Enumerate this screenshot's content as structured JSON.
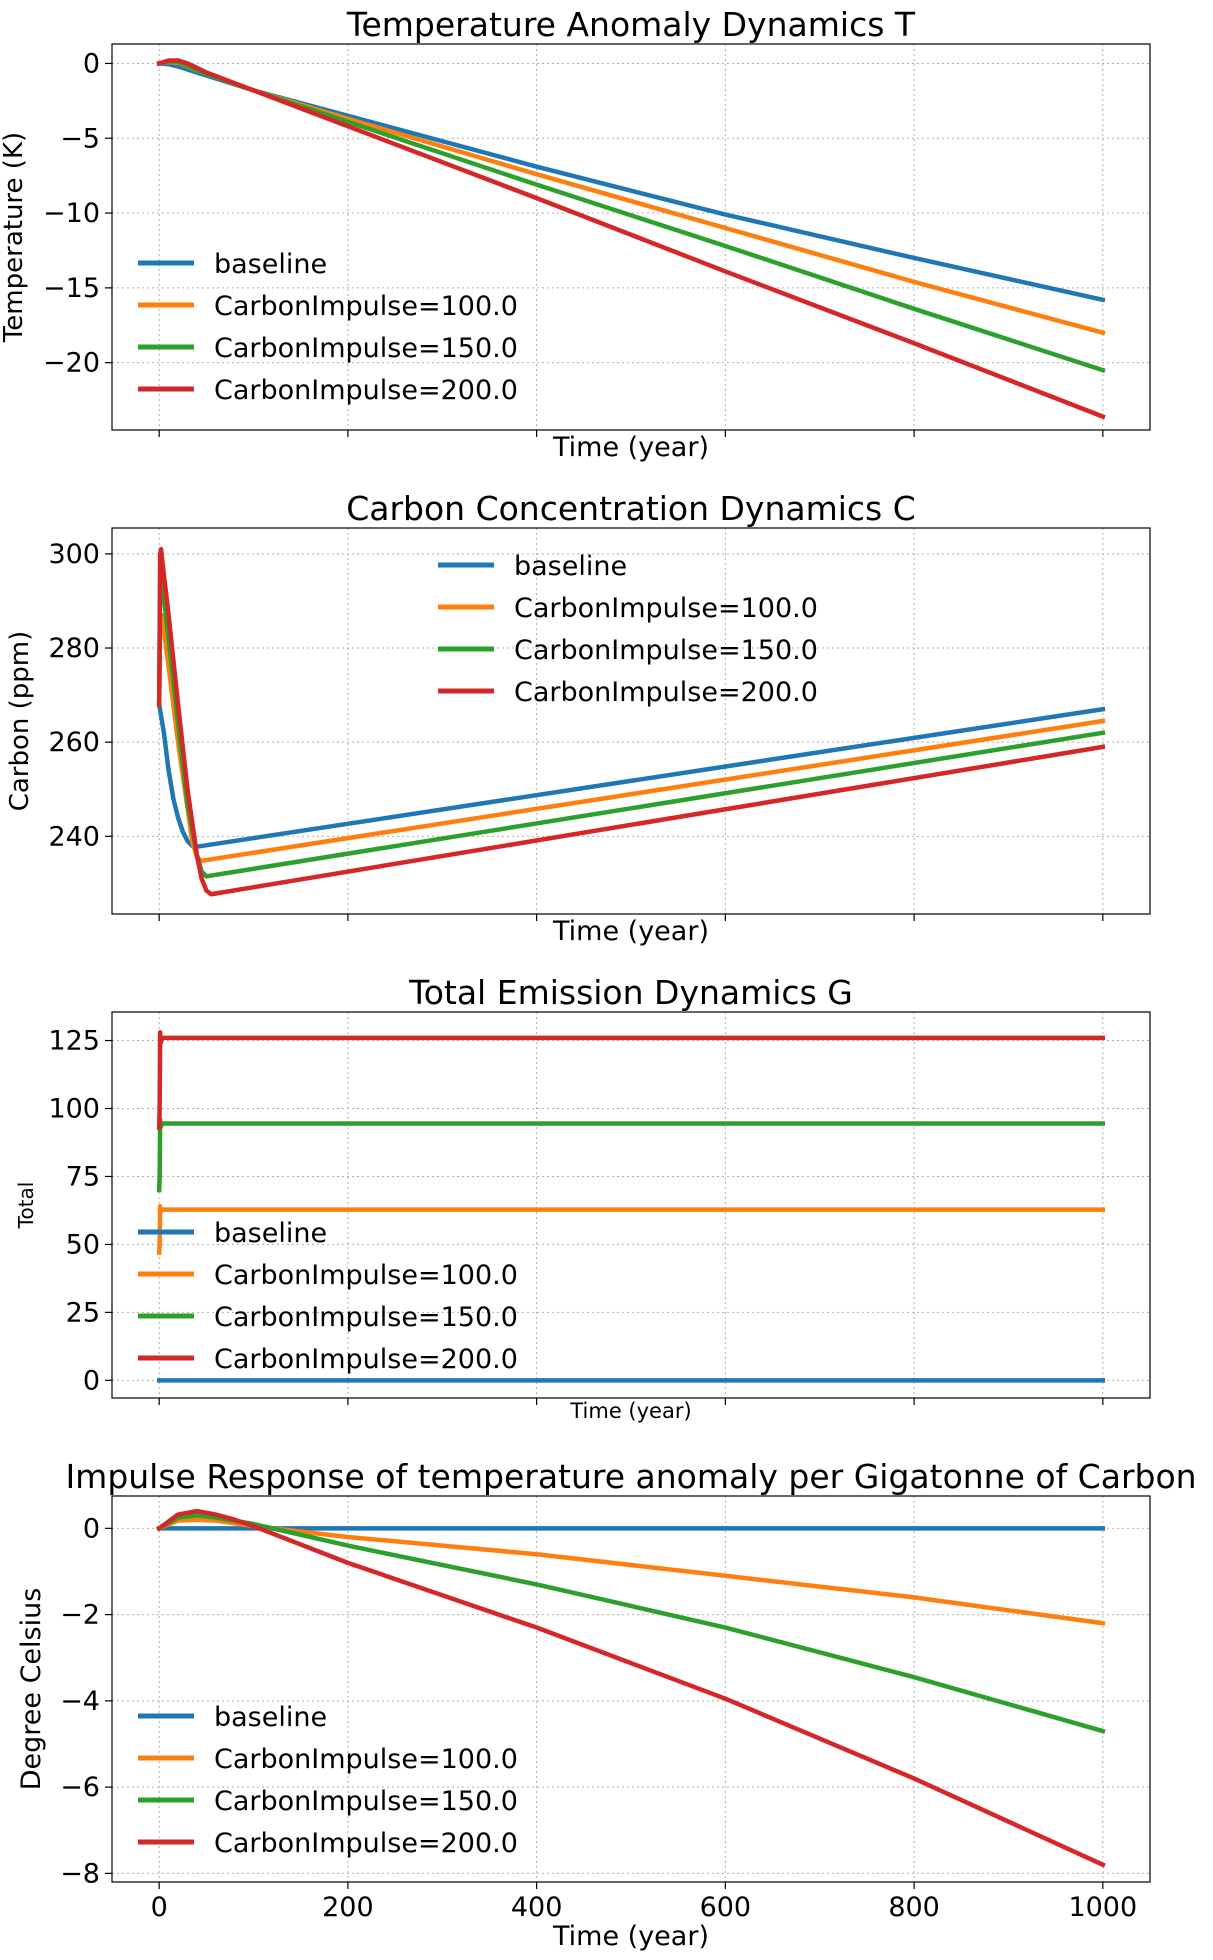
{
  "figure": {
    "x_tick_labels": [
      "0",
      "200",
      "400",
      "600",
      "800",
      "1000"
    ]
  },
  "chart_data": [
    {
      "type": "line",
      "title": "Temperature Anomaly Dynamics T",
      "xlabel": "Time (year)",
      "ylabel": "Temperature (K)",
      "xlim": [
        -50,
        1050
      ],
      "ylim": [
        -24.5,
        1.3
      ],
      "yticks": [
        0,
        -5,
        -10,
        -15,
        -20
      ],
      "yticklabels": [
        "0",
        "−5",
        "−10",
        "−15",
        "−20"
      ],
      "legend": "lower-left",
      "grid": true,
      "series": [
        {
          "name": "baseline",
          "color": "#1f77b4",
          "x": [
            0,
            10,
            20,
            50,
            100,
            200,
            400,
            600,
            800,
            1000
          ],
          "y": [
            0,
            -0.05,
            -0.2,
            -0.8,
            -1.8,
            -3.5,
            -6.9,
            -10.1,
            -13.0,
            -15.8
          ]
        },
        {
          "name": "CarbonImpulse=100.0",
          "color": "#ff7f0e",
          "x": [
            0,
            10,
            20,
            30,
            50,
            100,
            200,
            400,
            600,
            800,
            1000
          ],
          "y": [
            0,
            0.1,
            0.05,
            -0.2,
            -0.7,
            -1.8,
            -3.7,
            -7.4,
            -11.0,
            -14.6,
            -18.0
          ]
        },
        {
          "name": "CarbonImpulse=150.0",
          "color": "#2ca02c",
          "x": [
            0,
            10,
            20,
            30,
            50,
            100,
            200,
            400,
            600,
            800,
            1000
          ],
          "y": [
            0,
            0.15,
            0.1,
            -0.15,
            -0.7,
            -1.8,
            -3.9,
            -8.1,
            -12.2,
            -16.4,
            -20.5
          ]
        },
        {
          "name": "CarbonImpulse=200.0",
          "color": "#d62728",
          "x": [
            0,
            10,
            20,
            30,
            40,
            50,
            100,
            200,
            400,
            600,
            800,
            1000
          ],
          "y": [
            0,
            0.2,
            0.2,
            0.0,
            -0.3,
            -0.6,
            -1.8,
            -4.2,
            -9.0,
            -13.9,
            -18.7,
            -23.6
          ]
        }
      ]
    },
    {
      "type": "line",
      "title": "Carbon Concentration Dynamics C",
      "xlabel": "Time (year)",
      "ylabel": "Carbon (ppm)",
      "xlim": [
        -50,
        1050
      ],
      "ylim": [
        223.5,
        305.5
      ],
      "yticks": [
        240,
        260,
        280,
        300
      ],
      "yticklabels": [
        "240",
        "260",
        "280",
        "300"
      ],
      "legend": "upper-center",
      "grid": true,
      "series": [
        {
          "name": "baseline",
          "color": "#1f77b4",
          "x": [
            0,
            5,
            10,
            15,
            20,
            25,
            30,
            35,
            40,
            1000
          ],
          "y": [
            268,
            262,
            254,
            248,
            244,
            241,
            239,
            238,
            237.8,
            267
          ]
        },
        {
          "name": "CarbonImpulse=100.0",
          "color": "#ff7f0e",
          "x": [
            0,
            1,
            3,
            10,
            20,
            30,
            35,
            40,
            45,
            1000
          ],
          "y": [
            268,
            286,
            287,
            276,
            260,
            246,
            239,
            235.5,
            234.8,
            264.5
          ]
        },
        {
          "name": "CarbonImpulse=150.0",
          "color": "#2ca02c",
          "x": [
            0,
            1,
            3,
            10,
            20,
            30,
            40,
            45,
            50,
            1000
          ],
          "y": [
            268,
            293,
            294,
            282,
            264,
            247,
            236,
            232.5,
            231.5,
            262
          ]
        },
        {
          "name": "CarbonImpulse=200.0",
          "color": "#d62728",
          "x": [
            0,
            1,
            2,
            3,
            10,
            20,
            30,
            40,
            45,
            50,
            55,
            1000
          ],
          "y": [
            268,
            300,
            301,
            299,
            287,
            268,
            250,
            236,
            231,
            228.5,
            227.7,
            259
          ]
        }
      ]
    },
    {
      "type": "line",
      "title": "Total Emission Dynamics G",
      "xlabel": "Time (year)",
      "ylabel": "Total",
      "xlim": [
        -50,
        1050
      ],
      "ylim": [
        -6.5,
        135.5
      ],
      "yticks": [
        0,
        25,
        50,
        75,
        100,
        125
      ],
      "yticklabels": [
        "0",
        "25",
        "50",
        "75",
        "100",
        "125"
      ],
      "legend": "lower-left",
      "grid": true,
      "series": [
        {
          "name": "baseline",
          "color": "#1f77b4",
          "x": [
            0,
            1000
          ],
          "y": [
            0,
            0
          ]
        },
        {
          "name": "CarbonImpulse=100.0",
          "color": "#ff7f0e",
          "x": [
            0,
            0.5,
            1,
            1.5,
            3,
            1000
          ],
          "y": [
            47,
            50,
            64,
            62,
            62.8,
            62.8
          ]
        },
        {
          "name": "CarbonImpulse=150.0",
          "color": "#2ca02c",
          "x": [
            0,
            0.5,
            1,
            1.5,
            3,
            1000
          ],
          "y": [
            70,
            75,
            96,
            93,
            94.5,
            94.5
          ]
        },
        {
          "name": "CarbonImpulse=200.0",
          "color": "#d62728",
          "x": [
            0,
            0.5,
            1,
            1.5,
            3,
            1000
          ],
          "y": [
            93,
            100,
            128,
            124,
            126,
            126
          ]
        }
      ]
    },
    {
      "type": "line",
      "title": "Impulse Response of temperature anomaly per Gigatonne of Carbon",
      "xlabel": "Time (year)",
      "ylabel": "Degree Celsius",
      "xlim": [
        -50,
        1050
      ],
      "ylim": [
        -8.2,
        0.75
      ],
      "yticks": [
        0,
        -2,
        -4,
        -6,
        -8
      ],
      "yticklabels": [
        "0",
        "−2",
        "−4",
        "−6",
        "−8"
      ],
      "xticks": [
        0,
        200,
        400,
        600,
        800,
        1000
      ],
      "legend": "lower-left",
      "grid": true,
      "series": [
        {
          "name": "baseline",
          "color": "#1f77b4",
          "x": [
            0,
            1000
          ],
          "y": [
            0,
            0
          ]
        },
        {
          "name": "CarbonImpulse=100.0",
          "color": "#ff7f0e",
          "x": [
            0,
            20,
            40,
            60,
            100,
            200,
            400,
            600,
            800,
            1000
          ],
          "y": [
            0,
            0.18,
            0.2,
            0.18,
            0.05,
            -0.2,
            -0.6,
            -1.1,
            -1.6,
            -2.2
          ]
        },
        {
          "name": "CarbonImpulse=150.0",
          "color": "#2ca02c",
          "x": [
            0,
            20,
            40,
            60,
            100,
            200,
            400,
            600,
            800,
            1000
          ],
          "y": [
            0,
            0.25,
            0.3,
            0.25,
            0.1,
            -0.4,
            -1.3,
            -2.3,
            -3.45,
            -4.7
          ]
        },
        {
          "name": "CarbonImpulse=200.0",
          "color": "#d62728",
          "x": [
            0,
            20,
            40,
            60,
            80,
            100,
            200,
            400,
            600,
            800,
            1000
          ],
          "y": [
            0,
            0.32,
            0.4,
            0.32,
            0.2,
            0.05,
            -0.8,
            -2.3,
            -3.95,
            -5.8,
            -7.8
          ]
        }
      ]
    }
  ]
}
